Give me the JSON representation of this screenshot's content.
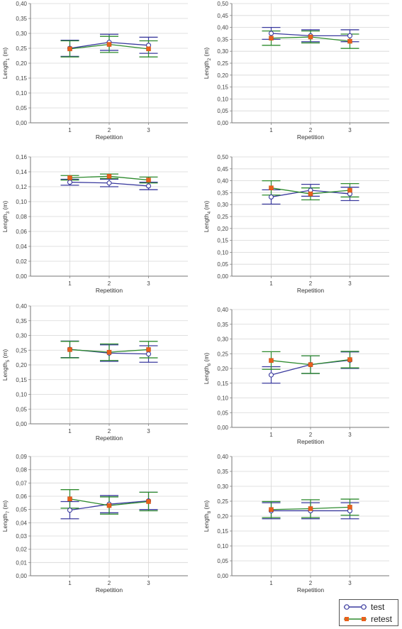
{
  "legend": [
    {
      "name": "test",
      "color": "#3a3a9e",
      "marker": "circle"
    },
    {
      "name": "retest",
      "color": "#e8601c",
      "marker": "square"
    }
  ],
  "colors": {
    "test_line": "#3a3a9e",
    "retest_line": "#2e8b2e",
    "retest_marker": "#e8601c",
    "grid": "#d6d6d6"
  },
  "chart_data": [
    {
      "type": "line",
      "ylabel_main": "Length",
      "ylabel_sub": "1",
      "ylabel_unit": " (m)",
      "xlabel": "Repetition",
      "categories": [
        "1",
        "2",
        "3"
      ],
      "ylim": [
        0,
        0.4
      ],
      "ytick_step": 0.05,
      "yticks": [
        "0,00",
        "0,05",
        "0,10",
        "0,15",
        "0,20",
        "0,25",
        "0,30",
        "0,35",
        "0,40"
      ],
      "series": [
        {
          "name": "test",
          "values": [
            0.25,
            0.27,
            0.26
          ],
          "err": [
            0.027,
            0.027,
            0.027
          ]
        },
        {
          "name": "retest",
          "values": [
            0.248,
            0.263,
            0.248
          ],
          "err": [
            0.027,
            0.027,
            0.027
          ]
        }
      ]
    },
    {
      "type": "line",
      "ylabel_main": "Length",
      "ylabel_sub": "2",
      "ylabel_unit": " (m)",
      "xlabel": "Repetition",
      "categories": [
        "1",
        "2",
        "3"
      ],
      "ylim": [
        0,
        0.5
      ],
      "ytick_step": 0.05,
      "yticks": [
        "0,00",
        "0,05",
        "0,10",
        "0,15",
        "0,20",
        "0,25",
        "0,30",
        "0,35",
        "0,40",
        "0,45",
        "0,50"
      ],
      "series": [
        {
          "name": "test",
          "values": [
            0.375,
            0.365,
            0.365
          ],
          "err": [
            0.025,
            0.025,
            0.025
          ]
        },
        {
          "name": "retest",
          "values": [
            0.355,
            0.36,
            0.342
          ],
          "err": [
            0.03,
            0.025,
            0.03
          ]
        }
      ]
    },
    {
      "type": "line",
      "ylabel_main": "Length",
      "ylabel_sub": "3",
      "ylabel_unit": " (m)",
      "xlabel": "Repetition",
      "categories": [
        "1",
        "2",
        "3"
      ],
      "ylim": [
        0,
        0.16
      ],
      "ytick_step": 0.02,
      "yticks": [
        "0,00",
        "0,02",
        "0,04",
        "0,06",
        "0,08",
        "0,10",
        "0,12",
        "0,14",
        "0,16"
      ],
      "series": [
        {
          "name": "test",
          "values": [
            0.126,
            0.125,
            0.121
          ],
          "err": [
            0.004,
            0.005,
            0.005
          ]
        },
        {
          "name": "retest",
          "values": [
            0.132,
            0.134,
            0.129
          ],
          "err": [
            0.003,
            0.003,
            0.004
          ]
        }
      ]
    },
    {
      "type": "line",
      "ylabel_main": "Length",
      "ylabel_sub": "4",
      "ylabel_unit": " (m)",
      "xlabel": "Repetition",
      "categories": [
        "1",
        "2",
        "3"
      ],
      "ylim": [
        0,
        0.5
      ],
      "ytick_step": 0.05,
      "yticks": [
        "0,00",
        "0,05",
        "0,10",
        "0,15",
        "0,20",
        "0,25",
        "0,30",
        "0,35",
        "0,40",
        "0,45",
        "0,50"
      ],
      "series": [
        {
          "name": "test",
          "values": [
            0.332,
            0.36,
            0.345
          ],
          "err": [
            0.03,
            0.025,
            0.028
          ]
        },
        {
          "name": "retest",
          "values": [
            0.37,
            0.345,
            0.36
          ],
          "err": [
            0.03,
            0.025,
            0.028
          ]
        }
      ]
    },
    {
      "type": "line",
      "ylabel_main": "Length",
      "ylabel_sub": "5",
      "ylabel_unit": " (m)",
      "xlabel": "Repetition",
      "categories": [
        "1",
        "2",
        "3"
      ],
      "ylim": [
        0,
        0.4
      ],
      "ytick_step": 0.05,
      "yticks": [
        "0,00",
        "0,05",
        "0,10",
        "0,15",
        "0,20",
        "0,25",
        "0,30",
        "0,35",
        "0,40"
      ],
      "series": [
        {
          "name": "test",
          "values": [
            0.253,
            0.24,
            0.237
          ],
          "err": [
            0.028,
            0.028,
            0.028
          ]
        },
        {
          "name": "retest",
          "values": [
            0.252,
            0.243,
            0.252
          ],
          "err": [
            0.028,
            0.028,
            0.028
          ]
        }
      ]
    },
    {
      "type": "line",
      "ylabel_main": "Length",
      "ylabel_sub": "6",
      "ylabel_unit": " (m)",
      "xlabel": "Repetition",
      "categories": [
        "1",
        "2",
        "3"
      ],
      "ylim": [
        0,
        0.4
      ],
      "ytick_step": 0.05,
      "yticks": [
        "0,00",
        "0,05",
        "0,10",
        "0,15",
        "0,20",
        "0,25",
        "0,30",
        "0,35",
        "0,40"
      ],
      "series": [
        {
          "name": "test",
          "values": [
            0.178,
            0.213,
            0.228
          ],
          "err": [
            0.028,
            0.03,
            0.028
          ]
        },
        {
          "name": "retest",
          "values": [
            0.227,
            0.213,
            0.23
          ],
          "err": [
            0.03,
            0.03,
            0.028
          ]
        }
      ]
    },
    {
      "type": "line",
      "ylabel_main": "Length",
      "ylabel_sub": "7",
      "ylabel_unit": " (m)",
      "xlabel": "Repetition",
      "categories": [
        "1",
        "2",
        "3"
      ],
      "ylim": [
        0,
        0.09
      ],
      "ytick_step": 0.01,
      "yticks": [
        "0,00",
        "0,01",
        "0,02",
        "0,03",
        "0,04",
        "0,05",
        "0,06",
        "0,07",
        "0,08",
        "0,09"
      ],
      "series": [
        {
          "name": "test",
          "values": [
            0.0495,
            0.054,
            0.0565
          ],
          "err": [
            0.0065,
            0.0065,
            0.0065
          ]
        },
        {
          "name": "retest",
          "values": [
            0.058,
            0.053,
            0.056
          ],
          "err": [
            0.007,
            0.0065,
            0.007
          ]
        }
      ]
    },
    {
      "type": "line",
      "ylabel_main": "Length",
      "ylabel_sub": "8",
      "ylabel_unit": " (m)",
      "xlabel": "Repetition",
      "categories": [
        "1",
        "2",
        "3"
      ],
      "ylim": [
        0,
        0.4
      ],
      "ytick_step": 0.05,
      "yticks": [
        "0,00",
        "0,05",
        "0,10",
        "0,15",
        "0,20",
        "0,25",
        "0,30",
        "0,35",
        "0,40"
      ],
      "series": [
        {
          "name": "test",
          "values": [
            0.218,
            0.218,
            0.218
          ],
          "err": [
            0.027,
            0.027,
            0.027
          ]
        },
        {
          "name": "retest",
          "values": [
            0.222,
            0.225,
            0.23
          ],
          "err": [
            0.027,
            0.03,
            0.027
          ]
        }
      ]
    }
  ]
}
